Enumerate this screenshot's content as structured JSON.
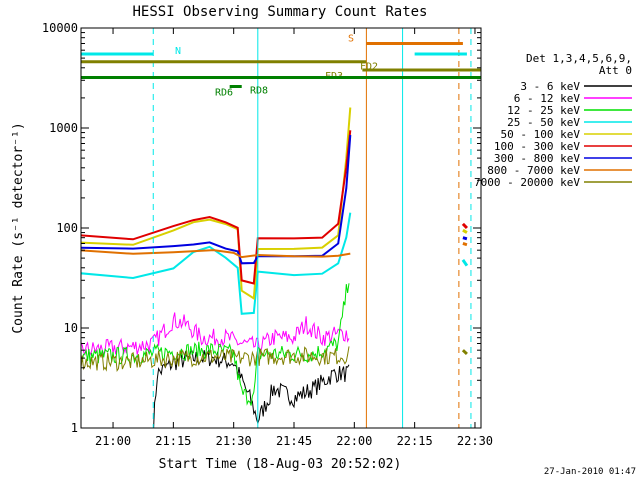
{
  "chart_data": {
    "type": "line",
    "title": "HESSI Observing Summary Count Rates",
    "xlabel": "Start Time (18-Aug-03 20:52:02)",
    "ylabel": "Count Rate (s⁻¹ detector⁻¹)",
    "y_scale": "log",
    "ylim": [
      1,
      10000
    ],
    "xlim": [
      "20:52:02",
      "22:31:30"
    ],
    "x_tick_labels": [
      "21:00",
      "21:15",
      "21:30",
      "21:45",
      "22:00",
      "22:15",
      "22:30"
    ],
    "y_tick_labels": [
      "1",
      "10",
      "100",
      "1000",
      "10000"
    ],
    "footer": "27-Jan-2010 01:47",
    "legend": {
      "placement": "right",
      "header": [
        "Det 1,3,4,5,6,9,",
        "Att 0"
      ],
      "entries": [
        {
          "label": "3 - 6 keV",
          "color": "#000000"
        },
        {
          "label": "6 - 12 keV",
          "color": "#ff00ff"
        },
        {
          "label": "12 - 25 keV",
          "color": "#00e000"
        },
        {
          "label": "25 - 50 keV",
          "color": "#00e8e8"
        },
        {
          "label": "50 - 100 keV",
          "color": "#d8d000"
        },
        {
          "label": "100 - 300 keV",
          "color": "#e00000"
        },
        {
          "label": "300 - 800 keV",
          "color": "#0000e0"
        },
        {
          "label": "800 - 7000 keV",
          "color": "#e07000"
        },
        {
          "label": "7000 - 20000 keV",
          "color": "#808000"
        }
      ]
    },
    "flag_bars": [
      {
        "label": "N",
        "color": "#00e8e8",
        "y": 5500,
        "segments": [
          [
            "20:52:02",
            "21:10:00"
          ],
          [
            "22:15:00",
            "22:28:00"
          ]
        ]
      },
      {
        "label": "S",
        "color": "#e07000",
        "y": 7000,
        "segments": [
          [
            "22:03:00",
            "22:27:00"
          ]
        ]
      },
      {
        "label": "FD2",
        "color": "#808000",
        "y": 4600,
        "segments": [
          [
            "20:52:02",
            "22:03:00"
          ]
        ]
      },
      {
        "label": "FD3",
        "color": "#808000",
        "y": 3800,
        "segments": [
          [
            "22:02:00",
            "22:31:30"
          ]
        ]
      },
      {
        "label": "RD8",
        "color": "#008000",
        "y": 3200,
        "segments": [
          [
            "20:52:02",
            "22:31:30"
          ]
        ]
      },
      {
        "label": "RD6",
        "color": "#008000",
        "y": 2600,
        "segments": [
          [
            "21:29:00",
            "21:32:00"
          ]
        ]
      }
    ],
    "vertical_lines": [
      {
        "time": "21:10:00",
        "color": "#00e8e8",
        "style": "dashed"
      },
      {
        "time": "21:36:00",
        "color": "#00e8e8",
        "style": "solid"
      },
      {
        "time": "22:03:00",
        "color": "#e07000",
        "style": "solid"
      },
      {
        "time": "22:12:00",
        "color": "#00e8e8",
        "style": "solid"
      },
      {
        "time": "22:26:00",
        "color": "#e07000",
        "style": "dashed"
      },
      {
        "time": "22:29:00",
        "color": "#00e8e8",
        "style": "dashed"
      }
    ],
    "series": [
      {
        "name": "3 - 6 keV",
        "color": "#000000",
        "style": "noisy",
        "points": [
          [
            "21:10",
            1
          ],
          [
            "21:11",
            3.5
          ],
          [
            "21:15",
            4.5
          ],
          [
            "21:20",
            5
          ],
          [
            "21:25",
            5
          ],
          [
            "21:30",
            4.5
          ],
          [
            "21:32",
            3
          ],
          [
            "21:34",
            2
          ],
          [
            "21:36",
            1.2
          ],
          [
            "21:40",
            2.5
          ],
          [
            "21:45",
            2
          ],
          [
            "21:50",
            2.5
          ],
          [
            "21:55",
            3.5
          ],
          [
            "21:59",
            3.5
          ]
        ]
      },
      {
        "name": "6 - 12 keV",
        "color": "#ff00ff",
        "style": "noisy",
        "points": [
          [
            "20:52",
            6
          ],
          [
            "21:05",
            6.5
          ],
          [
            "21:10",
            7
          ],
          [
            "21:15",
            12
          ],
          [
            "21:18",
            11
          ],
          [
            "21:22",
            8
          ],
          [
            "21:28",
            8
          ],
          [
            "21:32",
            7
          ],
          [
            "21:36",
            6.5
          ],
          [
            "21:40",
            8
          ],
          [
            "21:45",
            8
          ],
          [
            "21:48",
            11
          ],
          [
            "21:52",
            8
          ],
          [
            "21:58",
            9
          ],
          [
            "21:59",
            7
          ]
        ]
      },
      {
        "name": "12 - 25 keV",
        "color": "#00e000",
        "style": "noisy",
        "points": [
          [
            "20:52",
            5.2
          ],
          [
            "21:05",
            5.3
          ],
          [
            "21:15",
            5.8
          ],
          [
            "21:25",
            6
          ],
          [
            "21:30",
            5.5
          ],
          [
            "21:32",
            2.2
          ],
          [
            "21:35",
            2
          ],
          [
            "21:36",
            5.5
          ],
          [
            "21:50",
            5.5
          ],
          [
            "21:56",
            7
          ],
          [
            "21:59",
            40
          ]
        ]
      },
      {
        "name": "25 - 50 keV",
        "color": "#00e8e8",
        "points": [
          [
            "20:52",
            35
          ],
          [
            "21:05",
            32
          ],
          [
            "21:15",
            40
          ],
          [
            "21:20",
            58
          ],
          [
            "21:24",
            65
          ],
          [
            "21:28",
            50
          ],
          [
            "21:31",
            40
          ],
          [
            "21:32",
            14
          ],
          [
            "21:35",
            14
          ],
          [
            "21:36",
            37
          ],
          [
            "21:45",
            34
          ],
          [
            "21:52",
            35
          ],
          [
            "21:56",
            45
          ],
          [
            "21:58",
            80
          ],
          [
            "21:59",
            140
          ]
        ]
      },
      {
        "name": "50 - 100 keV",
        "color": "#d8d000",
        "points": [
          [
            "20:52",
            72
          ],
          [
            "21:05",
            68
          ],
          [
            "21:15",
            95
          ],
          [
            "21:20",
            115
          ],
          [
            "21:24",
            122
          ],
          [
            "21:28",
            108
          ],
          [
            "21:31",
            98
          ],
          [
            "21:32",
            24
          ],
          [
            "21:35",
            20
          ],
          [
            "21:36",
            62
          ],
          [
            "21:45",
            62
          ],
          [
            "21:52",
            63
          ],
          [
            "21:56",
            85
          ],
          [
            "21:58",
            500
          ],
          [
            "21:59",
            1600
          ]
        ]
      },
      {
        "name": "100 - 300 keV",
        "color": "#e00000",
        "points": [
          [
            "20:52",
            83
          ],
          [
            "21:05",
            78
          ],
          [
            "21:15",
            105
          ],
          [
            "21:20",
            122
          ],
          [
            "21:24",
            128
          ],
          [
            "21:28",
            115
          ],
          [
            "21:31",
            102
          ],
          [
            "21:32",
            30
          ],
          [
            "21:35",
            28
          ],
          [
            "21:36",
            78
          ],
          [
            "21:45",
            78
          ],
          [
            "21:52",
            80
          ],
          [
            "21:56",
            110
          ],
          [
            "21:58",
            400
          ],
          [
            "21:59",
            950
          ]
        ]
      },
      {
        "name": "300 - 800 keV",
        "color": "#0000e0",
        "points": [
          [
            "20:52",
            64
          ],
          [
            "21:05",
            63
          ],
          [
            "21:15",
            65
          ],
          [
            "21:20",
            68
          ],
          [
            "21:24",
            72
          ],
          [
            "21:28",
            62
          ],
          [
            "21:31",
            58
          ],
          [
            "21:32",
            44
          ],
          [
            "21:35",
            44
          ],
          [
            "21:36",
            52
          ],
          [
            "21:45",
            52
          ],
          [
            "21:52",
            53
          ],
          [
            "21:56",
            70
          ],
          [
            "21:58",
            250
          ],
          [
            "21:59",
            850
          ]
        ]
      },
      {
        "name": "800 - 7000 keV",
        "color": "#e07000",
        "points": [
          [
            "20:52",
            60
          ],
          [
            "21:05",
            56
          ],
          [
            "21:15",
            58
          ],
          [
            "21:25",
            60
          ],
          [
            "21:30",
            57
          ],
          [
            "21:32",
            52
          ],
          [
            "21:36",
            54
          ],
          [
            "21:45",
            52
          ],
          [
            "21:52",
            52
          ],
          [
            "21:56",
            52
          ],
          [
            "21:59",
            55
          ]
        ]
      },
      {
        "name": "7000 - 20000 keV",
        "color": "#808000",
        "style": "noisy",
        "points": [
          [
            "20:52",
            4.6
          ],
          [
            "21:05",
            4.6
          ],
          [
            "21:15",
            5
          ],
          [
            "21:25",
            5.2
          ],
          [
            "21:30",
            5
          ],
          [
            "21:35",
            5.1
          ],
          [
            "21:45",
            5.3
          ],
          [
            "21:55",
            5.2
          ],
          [
            "21:59",
            5.4
          ]
        ]
      }
    ],
    "right_segments": [
      {
        "name": "100 - 300 keV",
        "color": "#e00000",
        "points": [
          [
            "22:27:00",
            110
          ],
          [
            "22:28:00",
            100
          ]
        ]
      },
      {
        "name": "50 - 100 keV",
        "color": "#d8d000",
        "points": [
          [
            "22:27:00",
            95
          ],
          [
            "22:28:00",
            90
          ]
        ]
      },
      {
        "name": "300 - 800 keV",
        "color": "#0000e0",
        "points": [
          [
            "22:27:00",
            80
          ],
          [
            "22:28:00",
            78
          ]
        ]
      },
      {
        "name": "800 - 7000 keV",
        "color": "#e07000",
        "points": [
          [
            "22:27:00",
            70
          ],
          [
            "22:28:00",
            68
          ]
        ]
      },
      {
        "name": "25 - 50 keV",
        "color": "#00e8e8",
        "points": [
          [
            "22:27:00",
            48
          ],
          [
            "22:28:00",
            42
          ]
        ]
      },
      {
        "name": "7000 - 20000 keV",
        "color": "#808000",
        "points": [
          [
            "22:27:00",
            6
          ],
          [
            "22:28:00",
            5.5
          ]
        ]
      }
    ]
  }
}
